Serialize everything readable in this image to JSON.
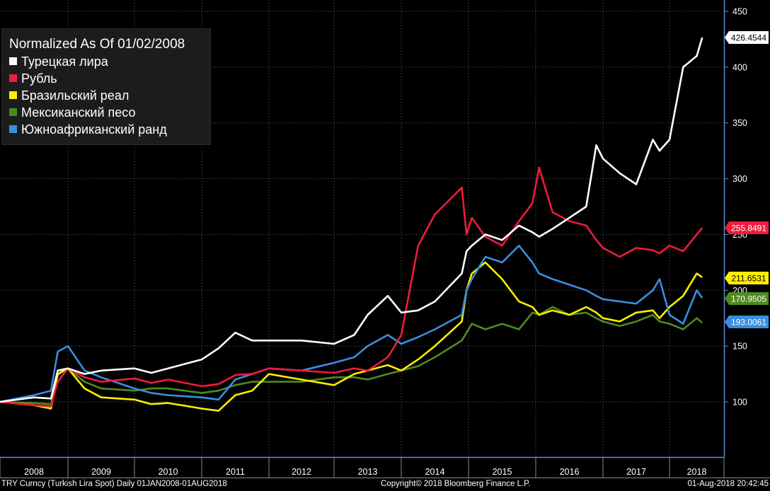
{
  "chart_data": {
    "type": "line",
    "title": "",
    "xlabel": "",
    "ylabel": "",
    "legend_title": "Normalized As Of 01/02/2008",
    "legend_position": "top-left",
    "grid": true,
    "ylim": [
      40,
      450
    ],
    "xlim": [
      2008.0,
      2018.75
    ],
    "y_ticks": [
      100,
      150,
      200,
      250,
      300,
      350,
      400,
      450
    ],
    "x_ticks": [
      "2008",
      "2009",
      "2010",
      "2011",
      "2012",
      "2013",
      "2014",
      "2015",
      "2016",
      "2017",
      "2018"
    ],
    "x": [
      2008.0,
      2008.5,
      2008.75,
      2008.85,
      2009.0,
      2009.25,
      2009.5,
      2010.0,
      2010.25,
      2010.5,
      2011.0,
      2011.25,
      2011.5,
      2011.75,
      2012.0,
      2012.5,
      2013.0,
      2013.3,
      2013.5,
      2013.8,
      2014.0,
      2014.25,
      2014.5,
      2014.9,
      2014.97,
      2015.05,
      2015.25,
      2015.5,
      2015.75,
      2015.95,
      2016.05,
      2016.25,
      2016.5,
      2016.75,
      2016.9,
      2017.0,
      2017.25,
      2017.5,
      2017.75,
      2017.85,
      2018.0,
      2018.25,
      2018.5,
      2018.6
    ],
    "series": [
      {
        "name": "Турецкая лира",
        "color": "#ffffff",
        "last_label": "426.4544",
        "values": [
          100,
          104,
          103,
          128,
          130,
          125,
          128,
          130,
          126,
          130,
          138,
          148,
          162,
          155,
          155,
          155,
          152,
          160,
          178,
          195,
          180,
          182,
          190,
          215,
          235,
          240,
          250,
          245,
          258,
          252,
          248,
          255,
          265,
          275,
          330,
          318,
          305,
          295,
          335,
          325,
          335,
          400,
          410,
          426.4544
        ]
      },
      {
        "name": "Рубль",
        "color": "#ee1c3a",
        "last_label": "255.8491",
        "values": [
          100,
          97,
          96,
          118,
          130,
          122,
          118,
          121,
          117,
          120,
          114,
          116,
          124,
          125,
          130,
          128,
          126,
          130,
          128,
          140,
          160,
          240,
          268,
          292,
          250,
          265,
          248,
          240,
          262,
          278,
          310,
          270,
          262,
          258,
          245,
          238,
          230,
          238,
          236,
          233,
          240,
          235,
          250,
          255.8491
        ]
      },
      {
        "name": "Бразильский реал",
        "color": "#ffee00",
        "last_label": "211.6531",
        "values": [
          100,
          97,
          94,
          125,
          130,
          112,
          104,
          102,
          98,
          99,
          94,
          92,
          106,
          110,
          125,
          120,
          115,
          125,
          128,
          133,
          128,
          138,
          150,
          172,
          200,
          215,
          225,
          210,
          190,
          185,
          178,
          182,
          178,
          185,
          180,
          175,
          172,
          180,
          182,
          175,
          185,
          195,
          215,
          211.6531
        ]
      },
      {
        "name": "Мексиканский песо",
        "color": "#4f8a1e",
        "last_label": "170.9505",
        "values": [
          100,
          99,
          98,
          124,
          130,
          118,
          112,
          110,
          112,
          112,
          108,
          110,
          115,
          118,
          118,
          118,
          122,
          122,
          120,
          125,
          128,
          132,
          140,
          155,
          162,
          170,
          165,
          170,
          165,
          180,
          178,
          185,
          178,
          180,
          175,
          172,
          168,
          172,
          178,
          172,
          170,
          165,
          175,
          170.9505
        ]
      },
      {
        "name": "Южноафриканский ранд",
        "color": "#3a8ee0",
        "last_label": "193.0061",
        "values": [
          100,
          106,
          110,
          145,
          150,
          128,
          122,
          112,
          108,
          106,
          104,
          102,
          120,
          125,
          130,
          128,
          135,
          140,
          150,
          160,
          152,
          158,
          165,
          178,
          200,
          210,
          230,
          225,
          240,
          225,
          215,
          210,
          205,
          200,
          195,
          192,
          190,
          188,
          200,
          210,
          178,
          170,
          200,
          193.0061
        ]
      }
    ]
  },
  "footer": {
    "left": "TRY Curncy (Turkish Lira Spot)  Daily 01JAN2008-01AUG2018",
    "center": "Copyright© 2018 Bloomberg Finance L.P.",
    "right": "01-Aug-2018 20:42:45"
  }
}
